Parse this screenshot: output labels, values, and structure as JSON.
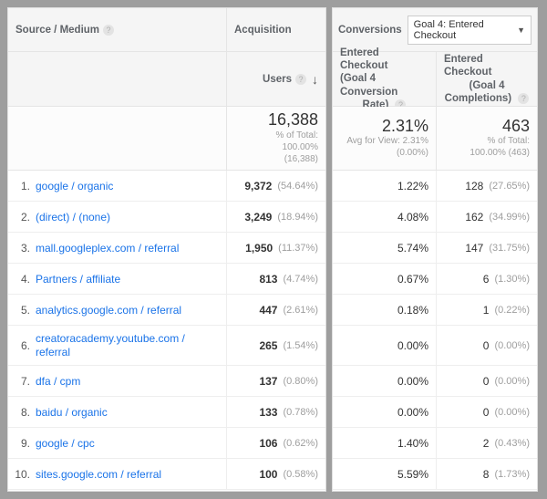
{
  "headers": {
    "source_medium": "Source / Medium",
    "acquisition": "Acquisition",
    "users": "Users",
    "conversions": "Conversions",
    "goal_dropdown": "Goal 4: Entered Checkout",
    "conv_rate_l1": "Entered Checkout",
    "conv_rate_l2": "(Goal 4 Conversion",
    "conv_rate_l3": "Rate)",
    "completions_l1": "Entered Checkout",
    "completions_l2": "(Goal 4",
    "completions_l3": "Completions)"
  },
  "summary": {
    "users": "16,388",
    "users_sub1": "% of Total:",
    "users_sub2": "100.00%",
    "users_sub3": "(16,388)",
    "rate": "2.31%",
    "rate_sub1": "Avg for View: 2.31%",
    "rate_sub2": "(0.00%)",
    "comp": "463",
    "comp_sub1": "% of Total:",
    "comp_sub2": "100.00% (463)"
  },
  "rows": [
    {
      "idx": "1.",
      "source": "google / organic",
      "users": "9,372",
      "users_pct": "(54.64%)",
      "rate": "1.22%",
      "comp": "128",
      "comp_pct": "(27.65%)"
    },
    {
      "idx": "2.",
      "source": "(direct) / (none)",
      "users": "3,249",
      "users_pct": "(18.94%)",
      "rate": "4.08%",
      "comp": "162",
      "comp_pct": "(34.99%)"
    },
    {
      "idx": "3.",
      "source": "mall.googleplex.com / referral",
      "users": "1,950",
      "users_pct": "(11.37%)",
      "rate": "5.74%",
      "comp": "147",
      "comp_pct": "(31.75%)"
    },
    {
      "idx": "4.",
      "source": "Partners / affiliate",
      "users": "813",
      "users_pct": "(4.74%)",
      "rate": "0.67%",
      "comp": "6",
      "comp_pct": "(1.30%)"
    },
    {
      "idx": "5.",
      "source": "analytics.google.com / referral",
      "users": "447",
      "users_pct": "(2.61%)",
      "rate": "0.18%",
      "comp": "1",
      "comp_pct": "(0.22%)"
    },
    {
      "idx": "6.",
      "source": "creatoracademy.youtube.com / referral",
      "users": "265",
      "users_pct": "(1.54%)",
      "rate": "0.00%",
      "comp": "0",
      "comp_pct": "(0.00%)",
      "tall": true
    },
    {
      "idx": "7.",
      "source": "dfa / cpm",
      "users": "137",
      "users_pct": "(0.80%)",
      "rate": "0.00%",
      "comp": "0",
      "comp_pct": "(0.00%)"
    },
    {
      "idx": "8.",
      "source": "baidu / organic",
      "users": "133",
      "users_pct": "(0.78%)",
      "rate": "0.00%",
      "comp": "0",
      "comp_pct": "(0.00%)"
    },
    {
      "idx": "9.",
      "source": "google / cpc",
      "users": "106",
      "users_pct": "(0.62%)",
      "rate": "1.40%",
      "comp": "2",
      "comp_pct": "(0.43%)"
    },
    {
      "idx": "10.",
      "source": "sites.google.com / referral",
      "users": "100",
      "users_pct": "(0.58%)",
      "rate": "5.59%",
      "comp": "8",
      "comp_pct": "(1.73%)"
    }
  ]
}
